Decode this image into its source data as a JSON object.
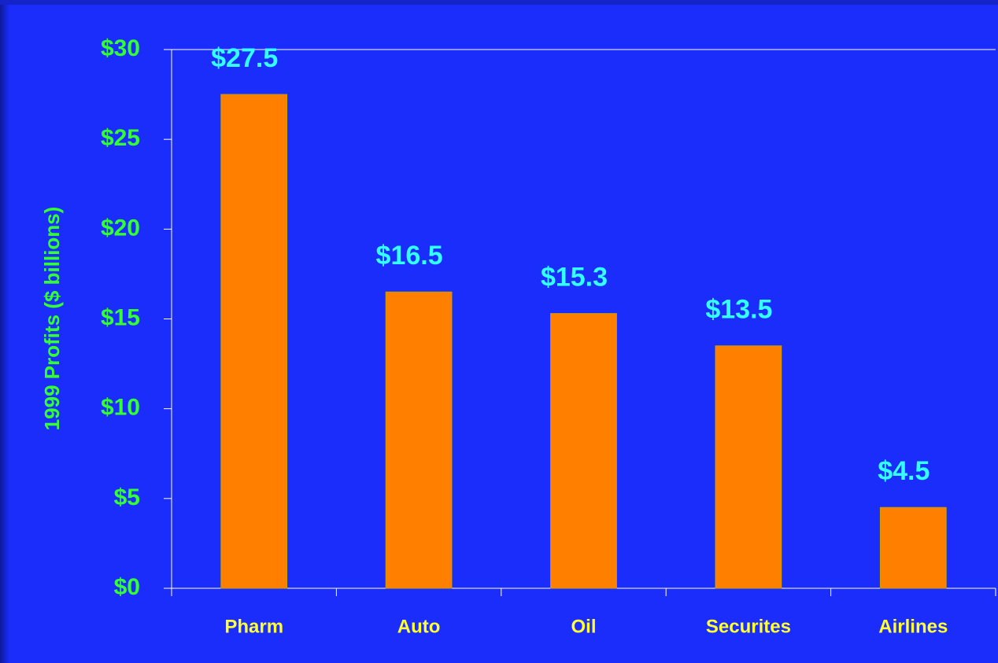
{
  "chart_data": {
    "type": "bar",
    "y_label": "1999 Profits ($ billions)",
    "categories": [
      "Pharm",
      "Auto",
      "Oil",
      "Securites",
      "Airlines"
    ],
    "values": [
      27.5,
      16.5,
      15.3,
      13.5,
      4.5
    ],
    "value_labels": [
      "$27.5",
      "$16.5",
      "$15.3",
      "$13.5",
      "$4.5"
    ],
    "color": "#ff8000",
    "ylim": [
      0,
      30
    ],
    "yticks": [
      {
        "value": 0,
        "label": "$0"
      },
      {
        "value": 5,
        "label": "$5"
      },
      {
        "value": 10,
        "label": "$10"
      },
      {
        "value": 15,
        "label": "$15"
      },
      {
        "value": 20,
        "label": "$20"
      },
      {
        "value": 25,
        "label": "$25"
      },
      {
        "value": 30,
        "label": "$30"
      }
    ]
  }
}
